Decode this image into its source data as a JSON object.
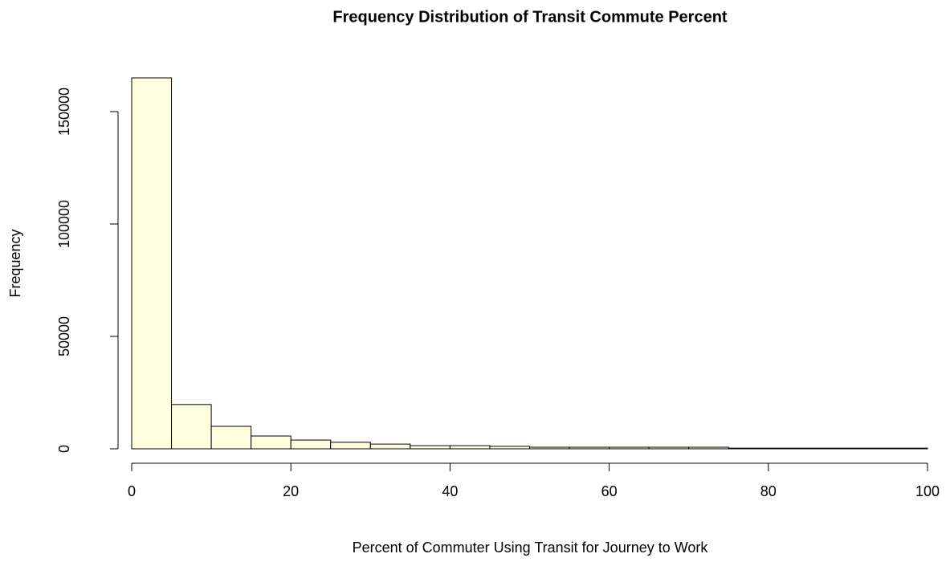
{
  "chart_data": {
    "type": "histogram",
    "title": "Frequency Distribution of Transit Commute Percent",
    "x_label": "Percent of Commuter Using Transit for Journey to Work",
    "y_label": "Frequency",
    "bins": [
      0,
      5,
      10,
      15,
      20,
      25,
      30,
      35,
      40,
      45,
      50,
      55,
      60,
      65,
      70,
      75,
      80,
      85,
      90,
      95,
      100
    ],
    "counts": [
      165000,
      19700,
      10000,
      5700,
      3900,
      2900,
      2100,
      1400,
      1400,
      1100,
      700,
      700,
      700,
      700,
      700,
      300,
      300,
      300,
      300,
      300
    ],
    "color": "#FFFFE0",
    "xlim": [
      0,
      100
    ],
    "xticks": [
      0,
      20,
      40,
      60,
      80,
      100
    ],
    "ylim": [
      0,
      165000
    ],
    "yticks": [
      0,
      50000,
      100000,
      150000
    ],
    "grid": false
  }
}
